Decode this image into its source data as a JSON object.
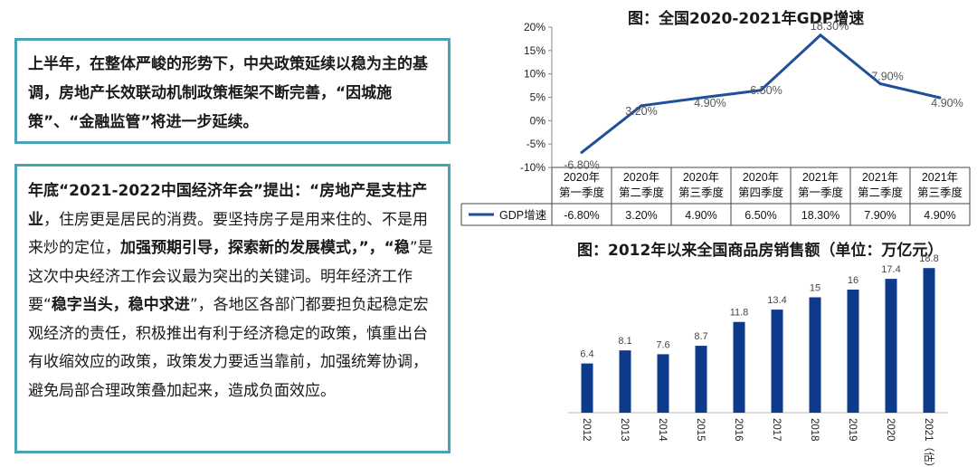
{
  "text_box_1": {
    "text": "上半年，在整体严峻的形势下，中央政策延续以稳为主的基调，房地产长效联动机制政策框架不断完善，“因城施策”、“金融监管”将进一步延续。"
  },
  "text_box_2": {
    "runs": [
      {
        "text": "年底",
        "bold": true
      },
      {
        "text": "“2021-2022中国经济年会”",
        "bold": true
      },
      {
        "text": "提出：",
        "bold": true
      },
      {
        "text": "“房地产是支柱产业",
        "bold": true
      },
      {
        "text": "，住房更是居民的消费。要坚持房子是用来住的、不是用来炒的定位，",
        "bold": false
      },
      {
        "text": "加强预期引导，探索新的发展模式",
        "bold": true
      },
      {
        "text": "，”，“",
        "bold": true
      },
      {
        "text": "稳",
        "bold": true
      },
      {
        "text": "”是这次中央经济工作会议最为突出的关键词。明年经济工作要“",
        "bold": false
      },
      {
        "text": "稳字当头，稳中求进",
        "bold": true
      },
      {
        "text": "”，各地区各部门都要担负起稳定宏观经济的责任，积极推出有利于经济稳定的政策，慎重出台有收缩效应的政策，政策发力要适当靠前，加强统筹协调，避免局部合理政策叠加起来，造成负面效应。",
        "bold": false
      }
    ]
  },
  "chart_data": [
    {
      "type": "line",
      "title": "图：全国2020-2021年GDP增速",
      "categories": [
        "2020年第一季度",
        "2020年第二季度",
        "2020年第三季度",
        "2020年第四季度",
        "2021年第一季度",
        "2021年第二季度",
        "2021年第三季度"
      ],
      "series": [
        {
          "name": "GDP增速",
          "values": [
            -6.8,
            3.2,
            4.9,
            6.5,
            18.3,
            7.9,
            4.9
          ],
          "color": "#1f4e9a"
        }
      ],
      "data_labels": [
        "-6.80%",
        "3.20%",
        "4.90%",
        "6.50%",
        "18.30%",
        "7.90%",
        "4.90%"
      ],
      "y_ticks": [
        "20%",
        "15%",
        "10%",
        "5%",
        "0%",
        "-5%",
        "-10%"
      ],
      "ylim": [
        -10,
        20
      ],
      "legend": "data-table"
    },
    {
      "type": "bar",
      "title": "图：2012年以来全国商品房销售额（单位：万亿元）",
      "categories": [
        "2012",
        "2013",
        "2014",
        "2015",
        "2016",
        "2017",
        "2018",
        "2019",
        "2020",
        "2021（估）"
      ],
      "values": [
        6.4,
        8.1,
        7.6,
        8.7,
        11.8,
        13.4,
        15,
        16,
        17.4,
        18.8
      ],
      "data_labels": [
        "6.4",
        "8.1",
        "7.6",
        "8.7",
        "11.8",
        "13.4",
        "15",
        "16",
        "17.4",
        "18.8"
      ],
      "color": "#0e3a8c",
      "ylim": [
        0,
        20
      ]
    }
  ]
}
